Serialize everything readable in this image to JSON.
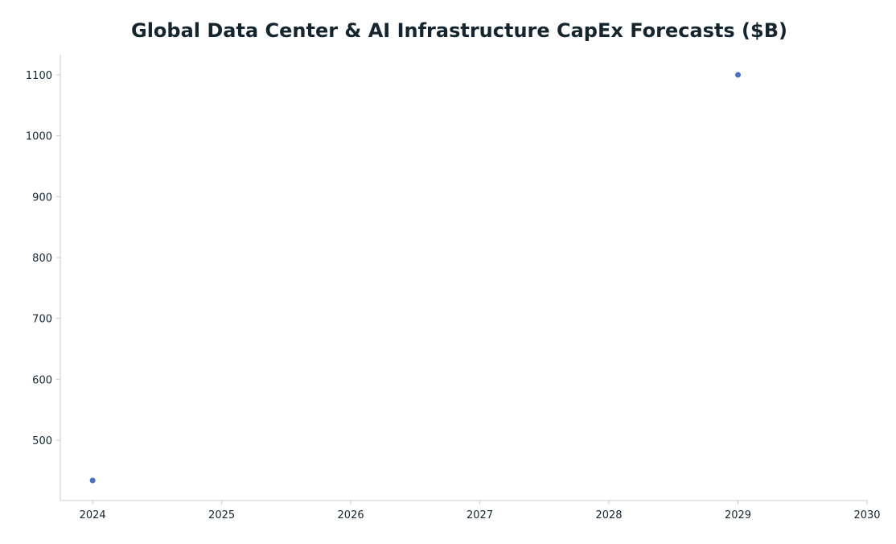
{
  "chart_data": {
    "type": "scatter",
    "title": "Global Data Center & AI Infrastructure CapEx Forecasts ($B)",
    "xlabel": "",
    "ylabel": "",
    "x": [
      2024,
      2029
    ],
    "y": [
      434,
      1100
    ],
    "xlim": [
      2023.75,
      2030
    ],
    "ylim": [
      401,
      1133
    ],
    "xticks": [
      2024,
      2025,
      2026,
      2027,
      2028,
      2029,
      2030
    ],
    "yticks": [
      500,
      600,
      700,
      800,
      900,
      1000,
      1100
    ],
    "grid": false,
    "legend": "none",
    "point_color": "#4c6fbf",
    "axis_color": "#cccccc",
    "text_color": "#14252f"
  }
}
